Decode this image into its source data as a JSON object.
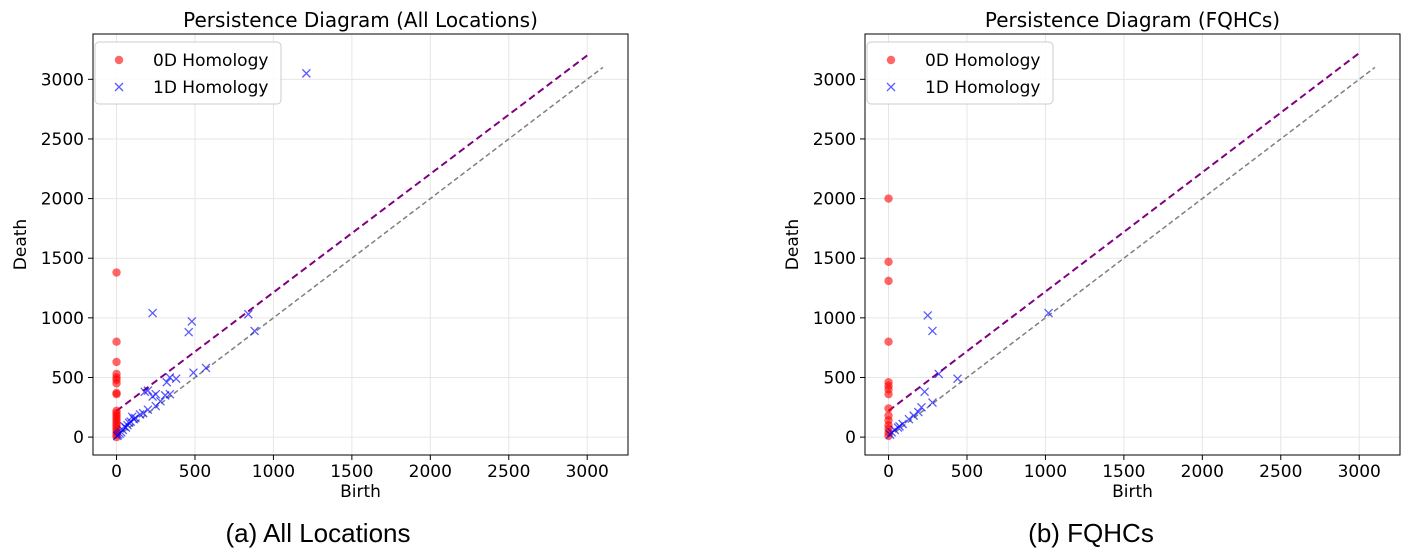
{
  "chart_data": [
    {
      "type": "scatter",
      "title": "Persistence Diagram (All Locations)",
      "caption": "(a) All Locations",
      "xlabel": "Birth",
      "ylabel": "Death",
      "xlim": [
        -150,
        3260
      ],
      "ylim": [
        -150,
        3380
      ],
      "xticks": [
        0,
        500,
        1000,
        1500,
        2000,
        2500,
        3000
      ],
      "yticks": [
        0,
        500,
        1000,
        1500,
        2000,
        2500,
        3000
      ],
      "grid": true,
      "legend_position": "top-left",
      "diagonal_line": {
        "from": [
          0,
          0
        ],
        "to": [
          3100,
          3100
        ],
        "color": "#808080",
        "style": "dashed"
      },
      "threshold_line": {
        "from": [
          0,
          220
        ],
        "to": [
          3000,
          3200
        ],
        "color": "#800080",
        "style": "dashed"
      },
      "series": [
        {
          "name": "0D Homology",
          "marker": "circle",
          "color": "#ff0000",
          "points": [
            [
              0,
              1380
            ],
            [
              0,
              800
            ],
            [
              0,
              630
            ],
            [
              0,
              530
            ],
            [
              0,
              500
            ],
            [
              0,
              480
            ],
            [
              0,
              450
            ],
            [
              0,
              370
            ],
            [
              0,
              360
            ],
            [
              0,
              220
            ],
            [
              0,
              200
            ],
            [
              0,
              180
            ],
            [
              0,
              160
            ],
            [
              0,
              140
            ],
            [
              0,
              120
            ],
            [
              0,
              100
            ],
            [
              0,
              80
            ],
            [
              0,
              60
            ],
            [
              0,
              40
            ],
            [
              0,
              20
            ],
            [
              0,
              0
            ]
          ]
        },
        {
          "name": "1D Homology",
          "marker": "x",
          "color": "#0000ff",
          "points": [
            [
              1210,
              3050
            ],
            [
              230,
              1040
            ],
            [
              460,
              880
            ],
            [
              480,
              970
            ],
            [
              840,
              1030
            ],
            [
              880,
              890
            ],
            [
              570,
              580
            ],
            [
              490,
              540
            ],
            [
              380,
              490
            ],
            [
              320,
              460
            ],
            [
              340,
              500
            ],
            [
              180,
              380
            ],
            [
              200,
              390
            ],
            [
              250,
              360
            ],
            [
              230,
              340
            ],
            [
              310,
              350
            ],
            [
              340,
              360
            ],
            [
              280,
              300
            ],
            [
              250,
              260
            ],
            [
              200,
              230
            ],
            [
              150,
              190
            ],
            [
              120,
              160
            ],
            [
              100,
              170
            ],
            [
              90,
              130
            ],
            [
              70,
              100
            ],
            [
              60,
              80
            ],
            [
              40,
              60
            ],
            [
              30,
              40
            ],
            [
              20,
              30
            ],
            [
              10,
              20
            ],
            [
              5,
              10
            ],
            [
              50,
              90
            ],
            [
              80,
              120
            ],
            [
              110,
              150
            ],
            [
              170,
              200
            ]
          ]
        }
      ]
    },
    {
      "type": "scatter",
      "title": "Persistence Diagram (FQHCs)",
      "caption": "(b) FQHCs",
      "xlabel": "Birth",
      "ylabel": "Death",
      "xlim": [
        -150,
        3260
      ],
      "ylim": [
        -150,
        3380
      ],
      "xticks": [
        0,
        500,
        1000,
        1500,
        2000,
        2500,
        3000
      ],
      "yticks": [
        0,
        500,
        1000,
        1500,
        2000,
        2500,
        3000
      ],
      "grid": true,
      "legend_position": "top-left",
      "diagonal_line": {
        "from": [
          0,
          0
        ],
        "to": [
          3100,
          3100
        ],
        "color": "#808080",
        "style": "dashed"
      },
      "threshold_line": {
        "from": [
          0,
          220
        ],
        "to": [
          3000,
          3220
        ],
        "color": "#800080",
        "style": "dashed"
      },
      "series": [
        {
          "name": "0D Homology",
          "marker": "circle",
          "color": "#ff0000",
          "points": [
            [
              0,
              2000
            ],
            [
              0,
              1470
            ],
            [
              0,
              1310
            ],
            [
              0,
              800
            ],
            [
              0,
              460
            ],
            [
              0,
              430
            ],
            [
              0,
              400
            ],
            [
              0,
              360
            ],
            [
              0,
              240
            ],
            [
              0,
              180
            ],
            [
              0,
              140
            ],
            [
              0,
              100
            ],
            [
              0,
              70
            ],
            [
              0,
              40
            ],
            [
              0,
              10
            ]
          ]
        },
        {
          "name": "1D Homology",
          "marker": "x",
          "color": "#0000ff",
          "points": [
            [
              1020,
              1040
            ],
            [
              250,
              1020
            ],
            [
              280,
              890
            ],
            [
              320,
              530
            ],
            [
              440,
              490
            ],
            [
              230,
              380
            ],
            [
              280,
              290
            ],
            [
              210,
              250
            ],
            [
              190,
              210
            ],
            [
              160,
              180
            ],
            [
              130,
              150
            ],
            [
              90,
              110
            ],
            [
              60,
              80
            ],
            [
              40,
              60
            ],
            [
              20,
              40
            ],
            [
              10,
              20
            ],
            [
              70,
              90
            ]
          ]
        }
      ]
    }
  ]
}
